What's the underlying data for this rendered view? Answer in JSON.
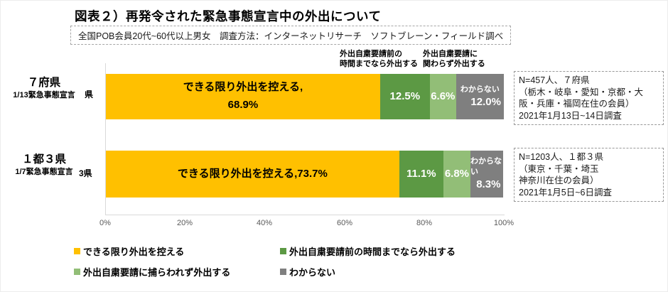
{
  "title": "図表２）再発令された緊急事態宣言中の外出について",
  "subtitle": "全国POB会員20代~60代以上男女　調査方法：インターネットリサーチ　ソフトブレーン・フィールド調べ",
  "column_headers": [
    "外出自粛要請前の\n時間までなら外出する",
    "外出自粛要請に\n関わらず外出する"
  ],
  "chart_data": {
    "type": "bar",
    "orientation": "horizontal",
    "stacked": true,
    "categories": [
      "７府県",
      "１都３県"
    ],
    "category_sublabels": [
      "1/13緊急事態宣言",
      "1/7緊急事態宣言"
    ],
    "series": [
      {
        "name": "できる限り外出を控える",
        "color": "#FFC000",
        "values": [
          68.9,
          73.7
        ]
      },
      {
        "name": "外出自粛要請前の時間までなら外出する",
        "color": "#5C9944",
        "values": [
          12.5,
          11.1
        ]
      },
      {
        "name": "外出自粛要請に捕らわれず外出する",
        "color": "#92BE77",
        "values": [
          6.6,
          6.8
        ]
      },
      {
        "name": "わからない",
        "color": "#7F7F7F",
        "values": [
          12.0,
          8.3
        ]
      }
    ],
    "xlim": [
      0,
      100
    ],
    "x_tick_labels": [
      "0%",
      "20%",
      "40%",
      "60%",
      "80%",
      "100%"
    ],
    "legend_position": "bottom",
    "grid": false
  },
  "axis": {
    "ticks": [
      "0%",
      "20%",
      "40%",
      "60%",
      "80%",
      "100%"
    ]
  },
  "bars": [
    {
      "label": "７府県",
      "sublabel": "1/13緊急事態宣言",
      "remnant": "県",
      "segments": [
        {
          "text": "できる限り外出を控える,\n68.9%"
        },
        {
          "text": "12.5%"
        },
        {
          "text": "6.6%"
        },
        {
          "text": "わからない",
          "text2": "12.0%"
        }
      ],
      "note": "N=457人、７府県\n（栃木・岐阜・愛知・京都・大\n阪・兵庫・福岡在住の会員）\n2021年1月13日~14日調査"
    },
    {
      "label": "１都３県",
      "sublabel": "1/7緊急事態宣言",
      "remnant": "3県",
      "segments": [
        {
          "text": "できる限り外出を控える,73.7%"
        },
        {
          "text": "11.1%"
        },
        {
          "text": "6.8%"
        },
        {
          "text": "わからない",
          "text2": "8.3%"
        }
      ],
      "note": "N=1203人、１都３県\n（東京・千葉・埼玉\n神奈川在住の会員）\n2021年1月5日~6日調査"
    }
  ],
  "legend": {
    "items": [
      {
        "label": "できる限り外出を控える",
        "color": "#FFC000"
      },
      {
        "label": "外出自粛要請前の時間までなら外出する",
        "color": "#5C9944"
      },
      {
        "label": "外出自粛要請に捕らわれず外出する",
        "color": "#92BE77"
      },
      {
        "label": "わからない",
        "color": "#7F7F7F"
      }
    ]
  }
}
